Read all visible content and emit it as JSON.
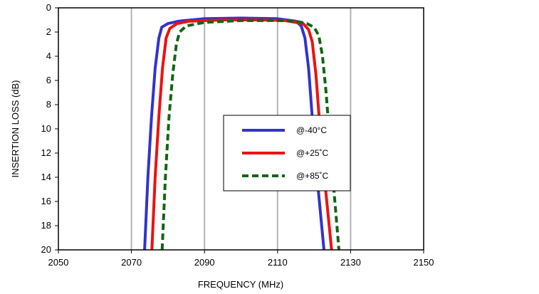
{
  "chart_data": {
    "type": "line",
    "title": "",
    "xlabel": "FREQUENCY (MHz)",
    "ylabel": "INSERTION LOSS (dB)",
    "xlim": [
      2050,
      2150
    ],
    "ylim": [
      0,
      20
    ],
    "y_inverted": true,
    "xticks": [
      2050,
      2070,
      2090,
      2110,
      2130,
      2150
    ],
    "yticks": [
      0,
      2,
      4,
      6,
      8,
      10,
      12,
      14,
      16,
      18,
      20
    ],
    "grid": {
      "vertical": true,
      "horizontal": false
    },
    "legend_position": "center",
    "series": [
      {
        "name": "@-40°C",
        "color": "#3333cc",
        "style": "solid",
        "points": [
          [
            2073.6,
            20
          ],
          [
            2074.5,
            14
          ],
          [
            2075.5,
            9
          ],
          [
            2076.5,
            5
          ],
          [
            2077.5,
            2.5
          ],
          [
            2078.3,
            1.6
          ],
          [
            2080,
            1.3
          ],
          [
            2083,
            1.1
          ],
          [
            2090,
            0.9
          ],
          [
            2100,
            0.85
          ],
          [
            2110,
            0.9
          ],
          [
            2115,
            1.1
          ],
          [
            2116.5,
            1.5
          ],
          [
            2117.5,
            2.5
          ],
          [
            2118.5,
            5
          ],
          [
            2119.5,
            9
          ],
          [
            2120.5,
            13
          ],
          [
            2122.7,
            20
          ]
        ]
      },
      {
        "name": "@+25˚C",
        "color": "#ee1111",
        "style": "solid",
        "points": [
          [
            2075.6,
            20
          ],
          [
            2076.5,
            14
          ],
          [
            2077.5,
            9
          ],
          [
            2078.5,
            5
          ],
          [
            2079.5,
            2.5
          ],
          [
            2080.5,
            1.7
          ],
          [
            2082.5,
            1.3
          ],
          [
            2086,
            1.1
          ],
          [
            2095,
            1.0
          ],
          [
            2105,
            1.0
          ],
          [
            2112,
            1.05
          ],
          [
            2117,
            1.3
          ],
          [
            2118.5,
            1.8
          ],
          [
            2119.5,
            2.8
          ],
          [
            2120.5,
            5.5
          ],
          [
            2121.5,
            9.5
          ],
          [
            2122.5,
            13
          ],
          [
            2124.8,
            20
          ]
        ]
      },
      {
        "name": "@+85˚C",
        "color": "#116611",
        "style": "dashed",
        "points": [
          [
            2078.4,
            20
          ],
          [
            2079.3,
            14
          ],
          [
            2080.3,
            9
          ],
          [
            2081.3,
            5.5
          ],
          [
            2082.3,
            3
          ],
          [
            2083.2,
            2.0
          ],
          [
            2085,
            1.5
          ],
          [
            2090,
            1.2
          ],
          [
            2100,
            1.05
          ],
          [
            2110,
            1.05
          ],
          [
            2115,
            1.1
          ],
          [
            2118,
            1.3
          ],
          [
            2120,
            1.6
          ],
          [
            2121.3,
            2.3
          ],
          [
            2122.3,
            4
          ],
          [
            2123.3,
            7
          ],
          [
            2124.3,
            11
          ],
          [
            2126.8,
            20
          ]
        ]
      }
    ]
  }
}
